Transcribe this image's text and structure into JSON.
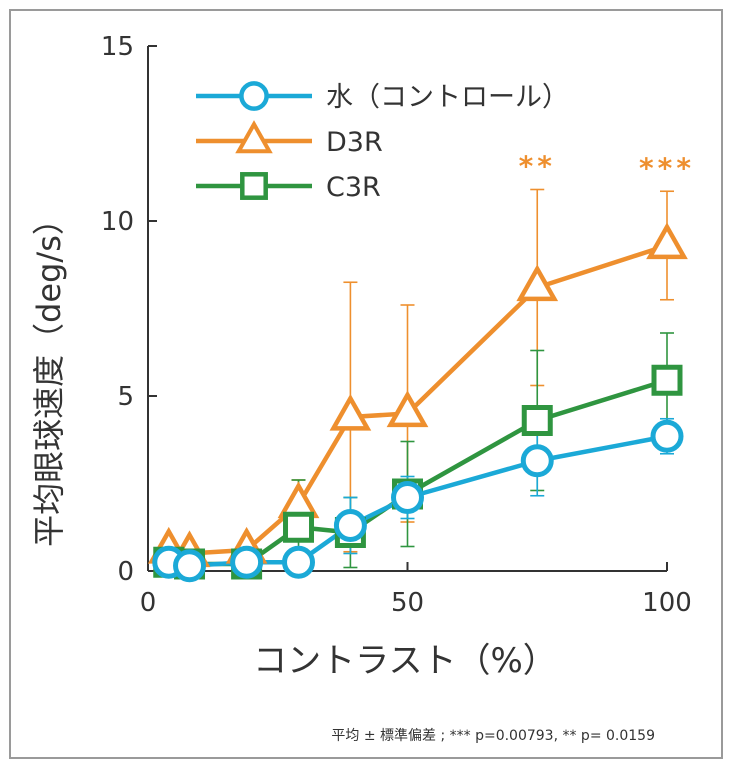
{
  "colors": {
    "water": "#1ba9d7",
    "d3r": "#ee8f2e",
    "c3r": "#2f9540",
    "axis": "#333333",
    "frame": "#9a9a9a",
    "text": "#333333"
  },
  "footnote": "平均 ± 標準偏差 ; *** p=0.00793, ** p= 0.0159",
  "chart_data": {
    "type": "line",
    "title": "",
    "xlabel": "コントラスト（%）",
    "ylabel": "平均眼球速度（deg/s）",
    "xlim": [
      0,
      100
    ],
    "ylim": [
      0,
      15
    ],
    "xticks": [
      0,
      50,
      100
    ],
    "yticks": [
      0,
      5,
      10,
      15
    ],
    "xtick_labels": [
      "0",
      "50",
      "100"
    ],
    "ytick_labels": [
      "0",
      "5",
      "10",
      "15"
    ],
    "grid": false,
    "legend_position": "top-left",
    "series": [
      {
        "name": "水（コントロール）",
        "key": "water",
        "marker": "circle",
        "x": [
          4,
          8,
          19,
          29,
          39,
          50,
          75,
          100
        ],
        "y": [
          0.25,
          0.15,
          0.25,
          0.25,
          1.3,
          2.1,
          3.15,
          3.85
        ],
        "err": [
          0.1,
          0.1,
          0.15,
          0.2,
          0.8,
          0.6,
          1.0,
          0.5
        ]
      },
      {
        "name": "D3R",
        "key": "d3r",
        "marker": "triangle",
        "x": [
          4,
          8,
          19,
          29,
          39,
          50,
          75,
          100
        ],
        "y": [
          0.6,
          0.5,
          0.6,
          1.9,
          4.4,
          4.5,
          8.1,
          9.3
        ],
        "err": [
          0.2,
          0.2,
          0.2,
          0.7,
          3.85,
          3.1,
          2.8,
          1.55
        ]
      },
      {
        "name": "C3R",
        "key": "c3r",
        "marker": "square",
        "x": [
          4,
          8,
          19,
          29,
          39,
          50,
          75,
          100
        ],
        "y": [
          0.25,
          0.2,
          0.2,
          1.25,
          1.1,
          2.2,
          4.3,
          5.45
        ],
        "err": [
          0.1,
          0.1,
          0.1,
          1.35,
          1.0,
          1.5,
          2.0,
          1.35
        ]
      }
    ],
    "annotations": [
      {
        "text": "**",
        "x": 75,
        "series": "d3r"
      },
      {
        "text": "***",
        "x": 100,
        "series": "d3r"
      }
    ]
  }
}
